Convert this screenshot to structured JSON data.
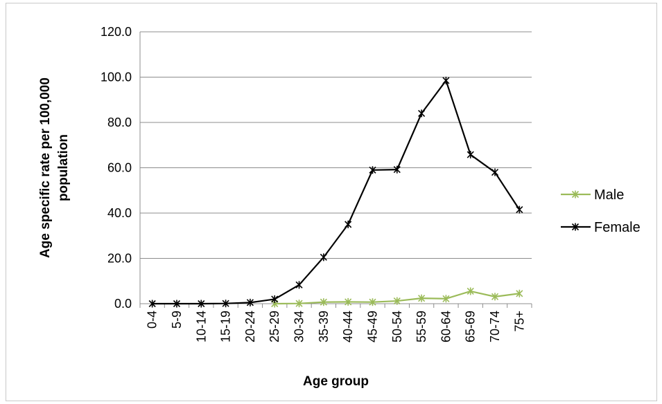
{
  "chart_data": {
    "type": "line",
    "categories": [
      "0-4",
      "5-9",
      "10-14",
      "15-19",
      "20-24",
      "25-29",
      "30-34",
      "35-39",
      "40-44",
      "45-49",
      "50-54",
      "55-59",
      "60-64",
      "65-69",
      "70-74",
      "75+"
    ],
    "series": [
      {
        "name": "Male",
        "color": "#9bbb59",
        "values": [
          null,
          null,
          null,
          null,
          null,
          0.0,
          0.1,
          0.7,
          0.8,
          0.7,
          1.2,
          2.4,
          2.2,
          5.5,
          3.1,
          4.5
        ]
      },
      {
        "name": "Female",
        "color": "#000000",
        "values": [
          0.0,
          0.0,
          0.0,
          0.1,
          0.5,
          2.0,
          8.3,
          20.5,
          35.0,
          59.0,
          59.2,
          84.0,
          98.5,
          65.8,
          58.0,
          41.5
        ]
      }
    ],
    "xlabel": "Age group",
    "ylabel": "Age specific rate per 100,000 population",
    "ylim": [
      0,
      120
    ],
    "yticks": [
      "0.0",
      "20.0",
      "40.0",
      "60.0",
      "80.0",
      "100.0",
      "120.0"
    ],
    "grid": true,
    "legend_position": "right",
    "marker": "asterisk"
  }
}
